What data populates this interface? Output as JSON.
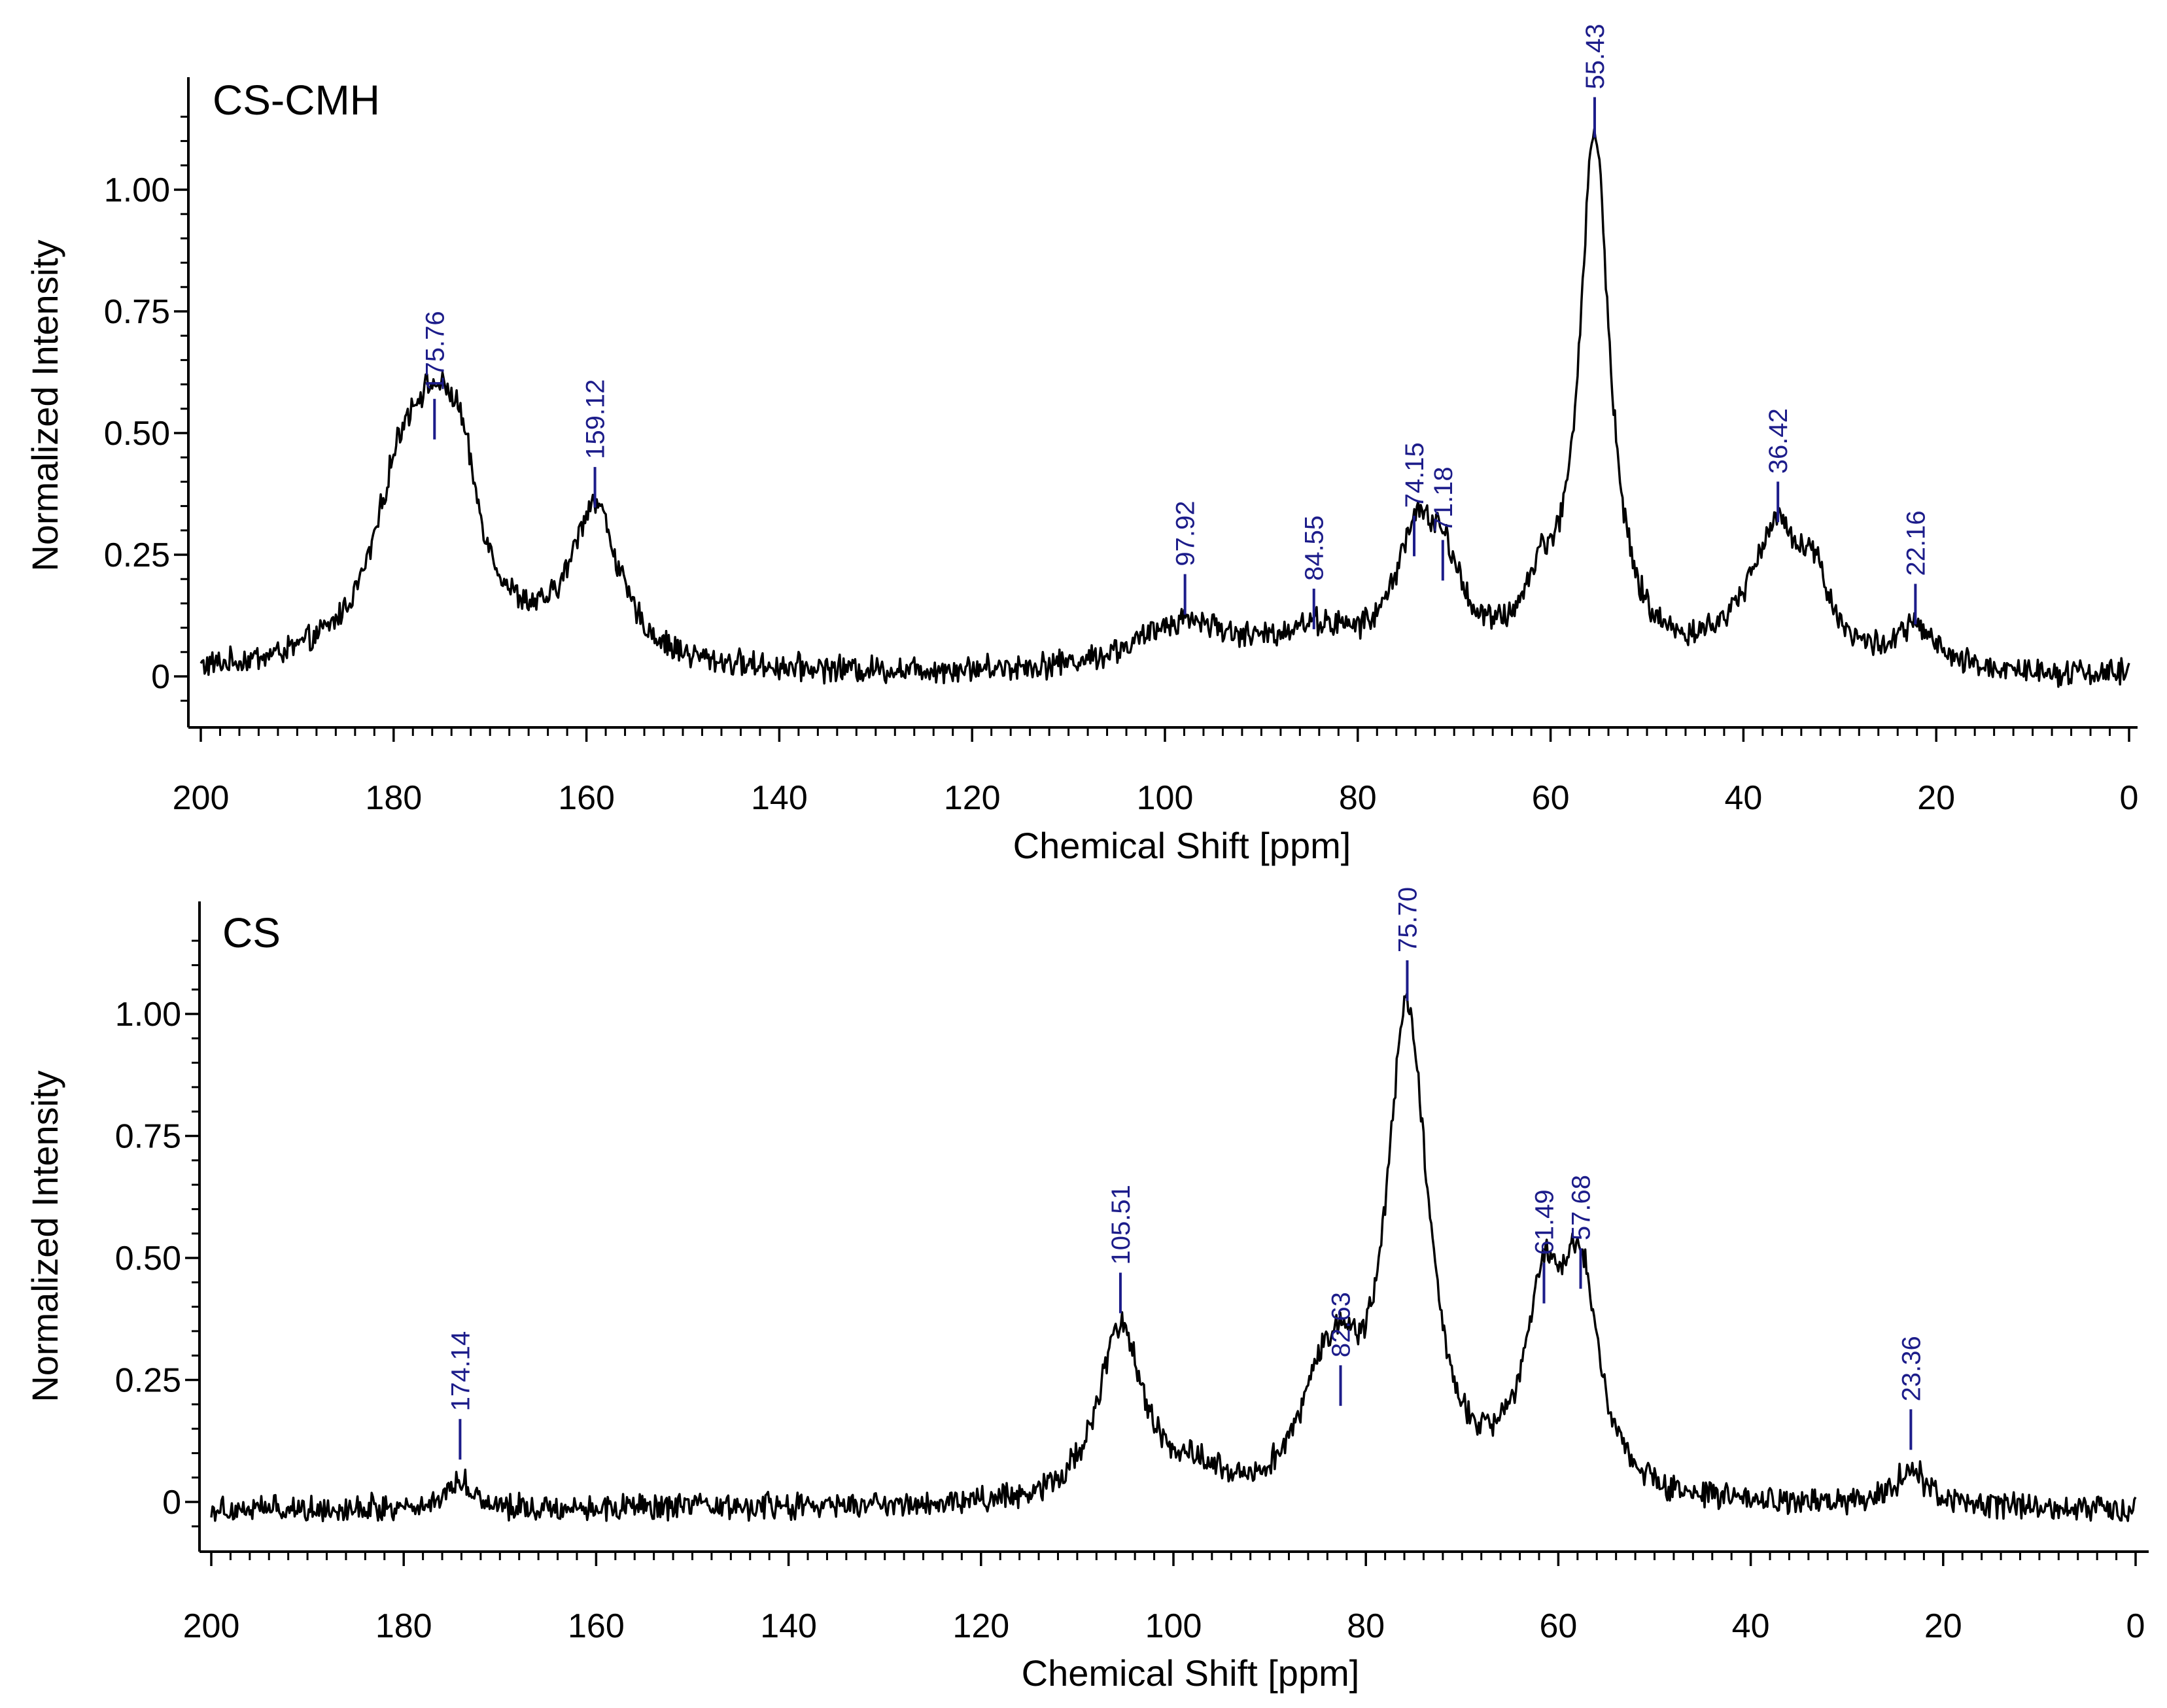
{
  "chart_data": [
    {
      "type": "line",
      "title": "CS-CMH",
      "xlabel": "Chemical Shift [ppm]",
      "ylabel": "Normalized Intensity",
      "xlim": [
        200,
        0
      ],
      "ylim": [
        -0.1,
        1.2
      ],
      "x_ticks": [
        200,
        180,
        160,
        140,
        120,
        100,
        80,
        60,
        40,
        20,
        0
      ],
      "x_tick_labels": [
        "200",
        "180",
        "160",
        "140",
        "120",
        "100",
        "80",
        "60",
        "40",
        "20",
        "0"
      ],
      "y_ticks": [
        0,
        0.25,
        0.5,
        0.75,
        1.0
      ],
      "y_tick_labels": [
        "0",
        "0.25",
        "0.50",
        "0.75",
        "1.00"
      ],
      "baseline": 0.0,
      "peaks": [
        {
          "x": 175.76,
          "y": 0.46,
          "label": "175.76",
          "width": 4.5
        },
        {
          "x": 179.5,
          "y": 0.2,
          "label": "",
          "width": 3.0
        },
        {
          "x": 173.0,
          "y": 0.15,
          "label": "",
          "width": 2.0
        },
        {
          "x": 159.12,
          "y": 0.32,
          "label": "159.12",
          "width": 3.0
        },
        {
          "x": 97.92,
          "y": 0.1,
          "label": "97.92",
          "width": 6.0
        },
        {
          "x": 84.55,
          "y": 0.07,
          "label": "84.55",
          "width": 5.0
        },
        {
          "x": 74.15,
          "y": 0.22,
          "label": "74.15",
          "width": 2.5
        },
        {
          "x": 71.18,
          "y": 0.17,
          "label": "71.18",
          "width": 2.5
        },
        {
          "x": 61.0,
          "y": 0.12,
          "label": "",
          "width": 2.2
        },
        {
          "x": 55.43,
          "y": 1.08,
          "label": "55.43",
          "width": 1.9
        },
        {
          "x": 36.42,
          "y": 0.29,
          "label": "36.42",
          "width": 3.8
        },
        {
          "x": 32.5,
          "y": 0.1,
          "label": "",
          "width": 1.5
        },
        {
          "x": 22.16,
          "y": 0.08,
          "label": "22.16",
          "width": 2.2
        }
      ]
    },
    {
      "type": "line",
      "title": "CS",
      "xlabel": "Chemical Shift [ppm]",
      "ylabel": "Normalized Intensity",
      "xlim": [
        200,
        0
      ],
      "ylim": [
        -0.1,
        1.2
      ],
      "x_ticks": [
        200,
        180,
        160,
        140,
        120,
        100,
        80,
        60,
        40,
        20,
        0
      ],
      "x_tick_labels": [
        "200",
        "180",
        "160",
        "140",
        "120",
        "100",
        "80",
        "60",
        "40",
        "20",
        "0"
      ],
      "y_ticks": [
        0,
        0.25,
        0.5,
        0.75,
        1.0
      ],
      "y_tick_labels": [
        "0",
        "0.25",
        "0.50",
        "0.75",
        "1.00"
      ],
      "baseline": -0.015,
      "peaks": [
        {
          "x": 174.14,
          "y": 0.06,
          "label": "174.14",
          "width": 1.5
        },
        {
          "x": 105.51,
          "y": 0.36,
          "label": "105.51",
          "width": 2.8
        },
        {
          "x": 98.0,
          "y": 0.05,
          "label": "",
          "width": 3.0
        },
        {
          "x": 85.0,
          "y": 0.15,
          "label": "",
          "width": 2.5
        },
        {
          "x": 82.63,
          "y": 0.17,
          "label": "82.63",
          "width": 2.2
        },
        {
          "x": 75.7,
          "y": 1.0,
          "label": "75.70",
          "width": 2.6
        },
        {
          "x": 61.49,
          "y": 0.38,
          "label": "61.49",
          "width": 2.4
        },
        {
          "x": 57.68,
          "y": 0.41,
          "label": "57.68",
          "width": 2.3
        },
        {
          "x": 23.36,
          "y": 0.08,
          "label": "23.36",
          "width": 1.8
        }
      ]
    }
  ]
}
